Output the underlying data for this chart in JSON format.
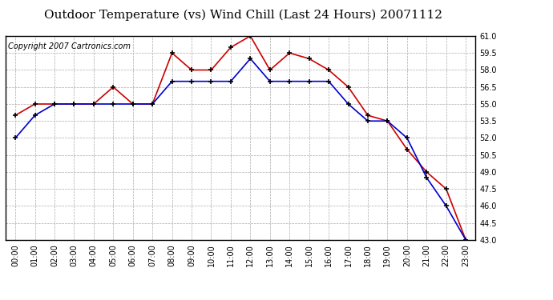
{
  "title": "Outdoor Temperature (vs) Wind Chill (Last 24 Hours) 20071112",
  "copyright_text": "Copyright 2007 Cartronics.com",
  "hours": [
    "00:00",
    "01:00",
    "02:00",
    "03:00",
    "04:00",
    "05:00",
    "06:00",
    "07:00",
    "08:00",
    "09:00",
    "10:00",
    "11:00",
    "12:00",
    "13:00",
    "14:00",
    "15:00",
    "16:00",
    "17:00",
    "18:00",
    "19:00",
    "20:00",
    "21:00",
    "22:00",
    "23:00"
  ],
  "temp_red": [
    54.0,
    55.0,
    55.0,
    55.0,
    55.0,
    56.5,
    55.0,
    55.0,
    59.5,
    58.0,
    58.0,
    60.0,
    61.0,
    58.0,
    59.5,
    59.0,
    58.0,
    56.5,
    54.0,
    53.5,
    51.0,
    49.0,
    47.5,
    43.0
  ],
  "wind_blue": [
    52.0,
    54.0,
    55.0,
    55.0,
    55.0,
    55.0,
    55.0,
    55.0,
    57.0,
    57.0,
    57.0,
    57.0,
    59.0,
    57.0,
    57.0,
    57.0,
    57.0,
    55.0,
    53.5,
    53.5,
    52.0,
    48.5,
    46.0,
    43.0
  ],
  "ylim_min": 43.0,
  "ylim_max": 61.0,
  "yticks": [
    43.0,
    44.5,
    46.0,
    47.5,
    49.0,
    50.5,
    52.0,
    53.5,
    55.0,
    56.5,
    58.0,
    59.5,
    61.0
  ],
  "bg_color": "#ffffff",
  "grid_color": "#aaaaaa",
  "red_color": "#cc0000",
  "blue_color": "#0000cc",
  "title_fontsize": 11,
  "copyright_fontsize": 7,
  "tick_fontsize": 7
}
